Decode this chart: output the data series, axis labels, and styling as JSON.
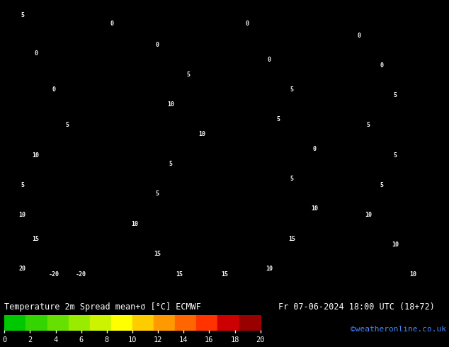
{
  "title": "Temperature 2m Spread mean+σ [°C] ECMWF",
  "date_str": "Fr 07-06-2024 18:00 UTC (18+72)",
  "credit": "©weatheronline.co.uk",
  "colorbar_ticks": [
    0,
    2,
    4,
    6,
    8,
    10,
    12,
    14,
    16,
    18,
    20
  ],
  "colorbar_colors": [
    "#00c800",
    "#33d400",
    "#66e000",
    "#99ec00",
    "#ccf400",
    "#ffff00",
    "#ffcc00",
    "#ff9900",
    "#ff6600",
    "#ff3300",
    "#cc0000",
    "#990000",
    "#660033"
  ],
  "map_bg_color": "#22cc22",
  "fig_bg_color": "#000000",
  "bottom_bar_bg": "#000000",
  "text_color": "#ffffff",
  "title_color": "#ffffff",
  "credit_color": "#4488ff",
  "figsize": [
    6.34,
    4.9
  ],
  "dpi": 100
}
